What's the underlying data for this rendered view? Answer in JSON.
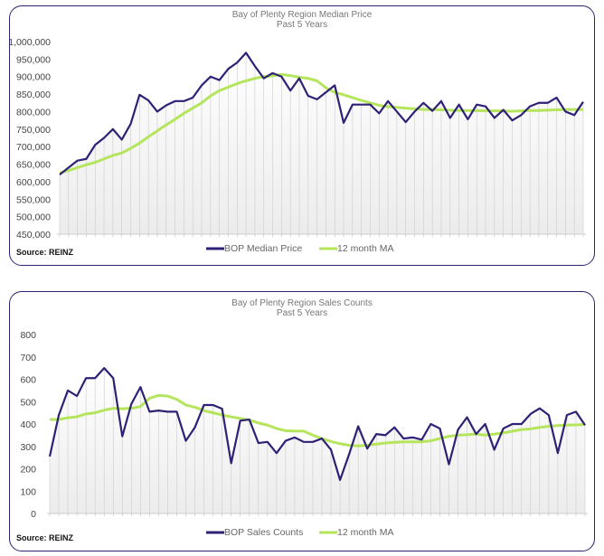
{
  "colors": {
    "series": "#2e2176",
    "ma": "#b5e55c",
    "panel_border": "#2d2370"
  },
  "chart_data": [
    {
      "type": "line",
      "title": "Bay of Plenty Region Median Price",
      "subtitle": "Past 5 Years",
      "source": "Source: REINZ",
      "ylim": [
        450000,
        1000000
      ],
      "yticks": [
        "1,000,000",
        "950,000",
        "900,000",
        "850,000",
        "800,000",
        "750,000",
        "700,000",
        "650,000",
        "600,000",
        "550,000",
        "500,000",
        "450,000"
      ],
      "series": [
        {
          "name": "BOP Median Price",
          "values": [
            620,
            640,
            660,
            665,
            705,
            725,
            750,
            720,
            765,
            848,
            832,
            800,
            818,
            830,
            830,
            840,
            875,
            900,
            890,
            922,
            940,
            968,
            930,
            895,
            910,
            900,
            860,
            895,
            845,
            835,
            855,
            875,
            768,
            820,
            820,
            820,
            795,
            830,
            800,
            770,
            800,
            825,
            802,
            830,
            782,
            820,
            778,
            820,
            815,
            782,
            805,
            775,
            790,
            815,
            825,
            825,
            840,
            800,
            790,
            828
          ],
          "unit": "thousand"
        },
        {
          "name": "12 month MA",
          "values": [
            625,
            632,
            640,
            648,
            655,
            665,
            675,
            682,
            695,
            710,
            728,
            745,
            762,
            778,
            795,
            810,
            825,
            845,
            860,
            870,
            880,
            888,
            895,
            900,
            902,
            906,
            903,
            898,
            895,
            888,
            868,
            855,
            848,
            840,
            832,
            825,
            818,
            814,
            812,
            810,
            808,
            806,
            806,
            805,
            804,
            803,
            803,
            803,
            802,
            802,
            802,
            801,
            802,
            803,
            803,
            804,
            805,
            806,
            806,
            806
          ],
          "unit": "thousand"
        }
      ]
    },
    {
      "type": "line",
      "title": "Bay of Plenty Region Sales Counts",
      "subtitle": "Past 5 Years",
      "source": "Source: REINZ",
      "ylim": [
        0,
        800
      ],
      "yticks": [
        "800",
        "700",
        "600",
        "500",
        "400",
        "300",
        "200",
        "100",
        "0"
      ],
      "series": [
        {
          "name": "BOP Sales Counts",
          "values": [
            255,
            440,
            550,
            525,
            605,
            605,
            650,
            605,
            345,
            490,
            565,
            455,
            460,
            455,
            455,
            325,
            385,
            485,
            485,
            468,
            225,
            415,
            420,
            315,
            320,
            270,
            325,
            340,
            320,
            320,
            335,
            285,
            150,
            265,
            390,
            290,
            355,
            350,
            385,
            335,
            340,
            330,
            400,
            380,
            220,
            375,
            430,
            355,
            400,
            285,
            380,
            400,
            400,
            445,
            470,
            440,
            270,
            440,
            455,
            395
          ]
        },
        {
          "name": "12 month MA",
          "values": [
            420,
            420,
            428,
            432,
            445,
            450,
            462,
            470,
            468,
            470,
            478,
            515,
            528,
            525,
            510,
            485,
            475,
            460,
            450,
            440,
            432,
            425,
            418,
            405,
            395,
            380,
            370,
            368,
            368,
            350,
            335,
            322,
            312,
            305,
            302,
            305,
            310,
            315,
            318,
            320,
            320,
            320,
            325,
            335,
            345,
            350,
            352,
            355,
            350,
            355,
            360,
            368,
            375,
            378,
            385,
            390,
            393,
            395,
            396,
            398
          ]
        }
      ]
    }
  ]
}
